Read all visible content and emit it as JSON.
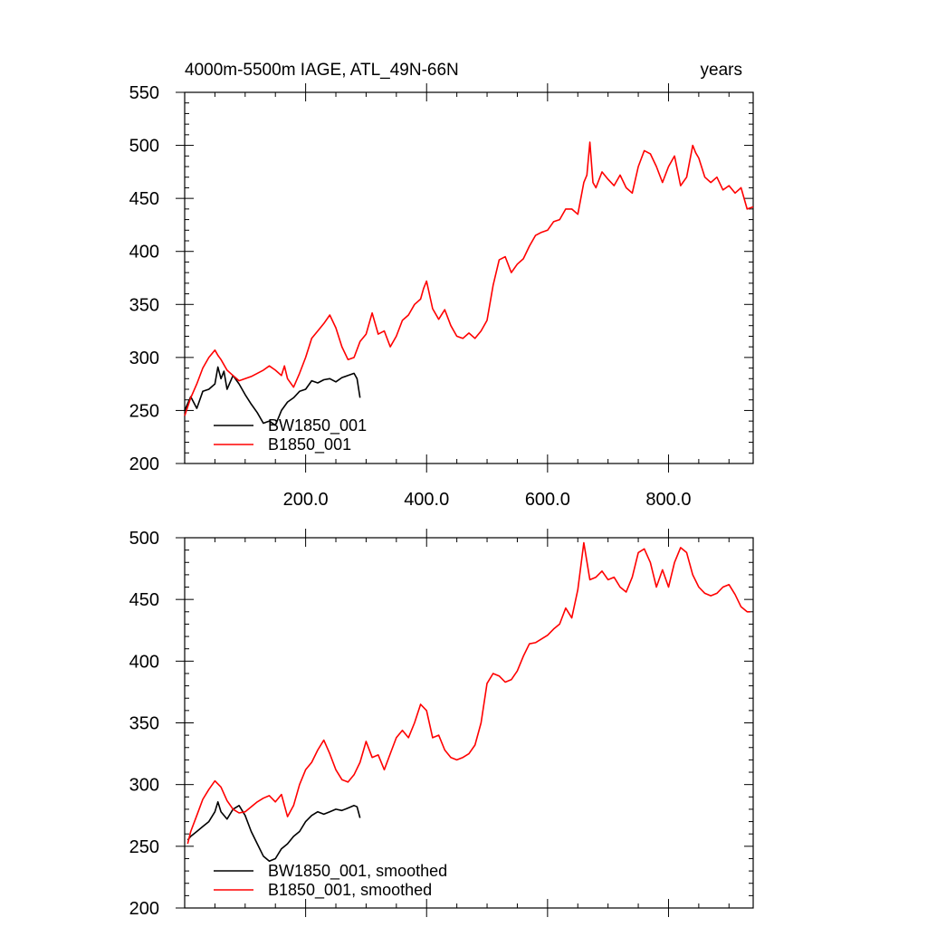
{
  "chart_data": [
    {
      "type": "line",
      "title": "4000m-5500m IAGE, ATL_49N-66N",
      "units": "years",
      "xlim": [
        0,
        940
      ],
      "ylim": [
        200,
        550
      ],
      "xticks": [
        200,
        400,
        600,
        800
      ],
      "xtick_labels": [
        "200.0",
        "400.0",
        "600.0",
        "800.0"
      ],
      "yticks": [
        200,
        250,
        300,
        350,
        400,
        450,
        500,
        550
      ],
      "ytick_labels": [
        "200",
        "250",
        "300",
        "350",
        "400",
        "450",
        "500",
        "550"
      ],
      "legend_position": "bottom-left",
      "series": [
        {
          "name": "BW1850_001",
          "color": "#000000",
          "x": [
            0,
            10,
            20,
            30,
            40,
            50,
            55,
            60,
            65,
            70,
            80,
            90,
            100,
            110,
            120,
            130,
            140,
            150,
            160,
            170,
            180,
            190,
            200,
            210,
            220,
            230,
            240,
            250,
            260,
            270,
            280,
            285,
            290
          ],
          "y": [
            250,
            263,
            252,
            268,
            270,
            275,
            291,
            280,
            287,
            270,
            283,
            275,
            265,
            256,
            248,
            238,
            240,
            236,
            250,
            258,
            262,
            268,
            270,
            278,
            276,
            279,
            280,
            277,
            281,
            283,
            285,
            280,
            262
          ]
        },
        {
          "name": "B1850_001",
          "color": "#ff0000",
          "x": [
            0,
            10,
            20,
            30,
            40,
            50,
            55,
            60,
            70,
            80,
            90,
            100,
            110,
            120,
            130,
            140,
            150,
            160,
            165,
            170,
            180,
            190,
            200,
            210,
            220,
            230,
            240,
            250,
            260,
            270,
            280,
            290,
            300,
            310,
            320,
            330,
            340,
            350,
            360,
            370,
            380,
            390,
            395,
            400,
            410,
            420,
            430,
            440,
            450,
            460,
            470,
            480,
            490,
            500,
            510,
            520,
            530,
            540,
            550,
            560,
            570,
            580,
            590,
            600,
            610,
            620,
            630,
            640,
            650,
            660,
            665,
            670,
            675,
            680,
            690,
            700,
            710,
            720,
            730,
            740,
            750,
            760,
            770,
            780,
            790,
            800,
            810,
            820,
            830,
            840,
            845,
            850,
            860,
            870,
            880,
            890,
            900,
            910,
            920,
            930,
            940
          ],
          "y": [
            245,
            262,
            275,
            290,
            300,
            307,
            302,
            298,
            288,
            283,
            278,
            280,
            282,
            285,
            288,
            292,
            288,
            283,
            292,
            280,
            272,
            285,
            300,
            318,
            325,
            332,
            340,
            328,
            310,
            298,
            300,
            315,
            322,
            342,
            322,
            325,
            310,
            320,
            335,
            340,
            350,
            355,
            365,
            372,
            346,
            336,
            345,
            330,
            320,
            318,
            323,
            318,
            325,
            335,
            368,
            392,
            395,
            380,
            388,
            393,
            405,
            415,
            418,
            420,
            428,
            430,
            440,
            440,
            435,
            465,
            472,
            503,
            465,
            460,
            475,
            468,
            462,
            472,
            460,
            455,
            480,
            495,
            492,
            480,
            465,
            480,
            490,
            462,
            470,
            500,
            493,
            488,
            470,
            465,
            470,
            458,
            462,
            455,
            460,
            440,
            442
          ]
        }
      ]
    },
    {
      "type": "line",
      "xlim": [
        0,
        940
      ],
      "ylim": [
        200,
        500
      ],
      "xticks": [
        200,
        400,
        600,
        800
      ],
      "xtick_labels": [],
      "yticks": [
        200,
        250,
        300,
        350,
        400,
        450,
        500
      ],
      "ytick_labels": [
        "200",
        "250",
        "300",
        "350",
        "400",
        "450",
        "500"
      ],
      "legend_position": "bottom-left",
      "series": [
        {
          "name": "BW1850_001, smoothed",
          "color": "#000000",
          "x": [
            5,
            10,
            20,
            30,
            40,
            50,
            55,
            60,
            70,
            80,
            90,
            100,
            110,
            120,
            130,
            140,
            150,
            160,
            170,
            180,
            190,
            200,
            210,
            220,
            230,
            240,
            250,
            260,
            270,
            280,
            285,
            290
          ],
          "y": [
            255,
            258,
            262,
            266,
            270,
            278,
            286,
            278,
            272,
            280,
            283,
            275,
            262,
            252,
            242,
            238,
            240,
            248,
            252,
            258,
            262,
            270,
            275,
            278,
            276,
            278,
            280,
            279,
            281,
            283,
            282,
            273
          ]
        },
        {
          "name": "B1850_001, smoothed",
          "color": "#ff0000",
          "x": [
            5,
            10,
            20,
            30,
            40,
            50,
            60,
            70,
            80,
            90,
            100,
            110,
            120,
            130,
            140,
            150,
            160,
            170,
            180,
            190,
            200,
            210,
            220,
            230,
            240,
            250,
            260,
            270,
            280,
            290,
            300,
            310,
            320,
            330,
            340,
            350,
            360,
            370,
            380,
            390,
            400,
            410,
            420,
            430,
            440,
            450,
            460,
            470,
            480,
            490,
            500,
            510,
            520,
            530,
            540,
            550,
            560,
            570,
            580,
            590,
            600,
            610,
            620,
            630,
            640,
            650,
            660,
            670,
            680,
            690,
            700,
            710,
            720,
            730,
            740,
            750,
            760,
            770,
            780,
            790,
            800,
            810,
            820,
            830,
            840,
            850,
            860,
            870,
            880,
            890,
            900,
            910,
            920,
            930,
            935
          ],
          "y": [
            252,
            262,
            275,
            288,
            296,
            303,
            298,
            287,
            280,
            277,
            278,
            282,
            286,
            289,
            291,
            286,
            292,
            274,
            283,
            300,
            312,
            318,
            328,
            336,
            325,
            312,
            304,
            302,
            308,
            318,
            335,
            322,
            324,
            312,
            325,
            338,
            344,
            338,
            350,
            365,
            360,
            338,
            340,
            328,
            322,
            320,
            322,
            325,
            332,
            350,
            382,
            390,
            388,
            383,
            385,
            392,
            404,
            414,
            415,
            418,
            421,
            426,
            430,
            443,
            435,
            458,
            496,
            466,
            468,
            473,
            466,
            468,
            460,
            456,
            468,
            488,
            491,
            480,
            460,
            474,
            460,
            480,
            492,
            488,
            470,
            460,
            455,
            453,
            455,
            460,
            462,
            454,
            444,
            440,
            440
          ]
        }
      ]
    }
  ]
}
